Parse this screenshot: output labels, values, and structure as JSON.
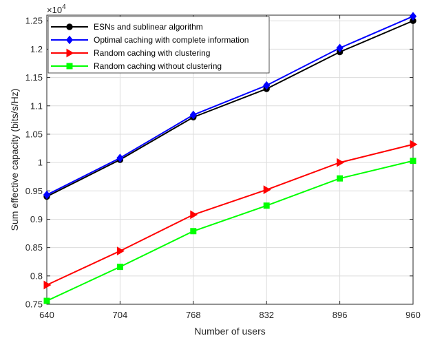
{
  "chart_data": {
    "type": "line",
    "title": "",
    "xlabel": "Number of users",
    "ylabel": "Sum effective capacity (bits/s/Hz)",
    "y_multiplier_text": "×10",
    "y_multiplier_exponent": "4",
    "x": [
      640,
      704,
      768,
      832,
      896,
      960
    ],
    "xlim": [
      640,
      960
    ],
    "ylim": [
      7500,
      12600
    ],
    "x_ticks": [
      640,
      704,
      768,
      832,
      896,
      960
    ],
    "x_tick_labels": [
      "640",
      "704",
      "768",
      "832",
      "896",
      "960"
    ],
    "y_ticks": [
      7500,
      8000,
      8500,
      9000,
      9500,
      10000,
      10500,
      11000,
      11500,
      12000,
      12500
    ],
    "y_tick_labels": [
      "0.75",
      "0.8",
      "0.85",
      "0.9",
      "0.95",
      "1",
      "1.05",
      "1.1",
      "1.15",
      "1.2",
      "1.25"
    ],
    "grid": true,
    "legend_position": "top-left",
    "series": [
      {
        "name": "ESNs and sublinear algorithm",
        "color": "#000000",
        "marker": "circle",
        "values": [
          9400,
          10050,
          10800,
          11300,
          11950,
          12500
        ]
      },
      {
        "name": "Optimal caching with complete information",
        "color": "#0000ff",
        "marker": "diamond",
        "values": [
          9430,
          10080,
          10840,
          11360,
          12020,
          12580
        ]
      },
      {
        "name": "Random caching with clustering",
        "color": "#ff0000",
        "marker": "triangle-right",
        "values": [
          7840,
          8440,
          9080,
          9520,
          10000,
          10320
        ]
      },
      {
        "name": "Random caching without clustering",
        "color": "#00ff00",
        "marker": "square",
        "values": [
          7560,
          8160,
          8790,
          9240,
          9720,
          10030
        ]
      }
    ]
  }
}
